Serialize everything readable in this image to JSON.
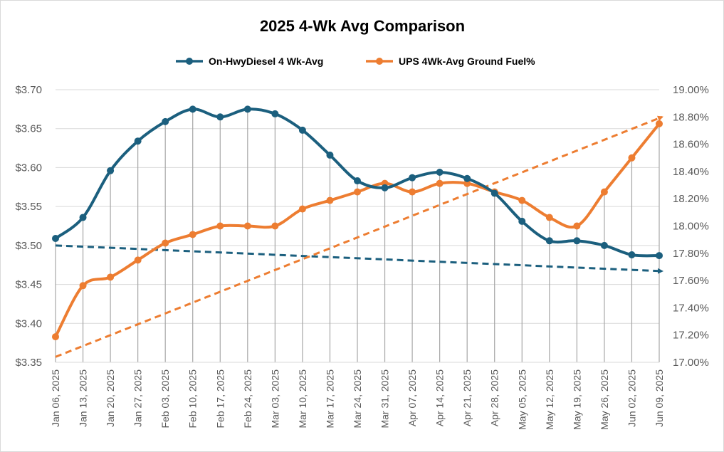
{
  "chart_data": {
    "type": "line",
    "title": "2025 4-Wk Avg Comparison",
    "categories": [
      "Jan 06, 2025",
      "Jan 13, 2025",
      "Jan 20, 2025",
      "Jan 27, 2025",
      "Feb 03, 2025",
      "Feb 10, 2025",
      "Feb 17, 2025",
      "Feb 24, 2025",
      "Mar 03, 2025",
      "Mar 10, 2025",
      "Mar 17, 2025",
      "Mar 24, 2025",
      "Mar 31, 2025",
      "Apr 07, 2025",
      "Apr 14, 2025",
      "Apr 21, 2025",
      "Apr 28, 2025",
      "May 05, 2025",
      "May 12, 2025",
      "May 19, 2025",
      "May 26, 2025",
      "Jun 02, 2025",
      "Jun 09, 2025"
    ],
    "series": [
      {
        "name": "On-HwyDiesel 4 Wk-Avg",
        "axis": "left",
        "color": "#1b5f7e",
        "values": [
          3.509,
          3.536,
          3.596,
          3.634,
          3.659,
          3.675,
          3.665,
          3.675,
          3.669,
          3.648,
          3.616,
          3.583,
          3.574,
          3.587,
          3.594,
          3.586,
          3.567,
          3.531,
          3.506,
          3.506,
          3.5,
          3.488,
          3.487
        ],
        "trendline": {
          "start": 3.5,
          "end": 3.467,
          "style": "dashed"
        }
      },
      {
        "name": "UPS 4Wk-Avg Ground Fuel%",
        "axis": "right",
        "color": "#ed7d31",
        "values": [
          17.1875,
          17.5625,
          17.625,
          17.75,
          17.875,
          17.9375,
          18.0,
          18.0,
          18.0,
          18.125,
          18.1875,
          18.25,
          18.3125,
          18.25,
          18.3125,
          18.3125,
          18.25,
          18.1875,
          18.0625,
          18.0,
          18.25,
          18.5,
          18.75
        ],
        "trendline": {
          "start": 17.04,
          "end": 18.8,
          "style": "dashed"
        }
      }
    ],
    "y_left": {
      "min": 3.35,
      "max": 3.7,
      "ticks": [
        "$3.35",
        "$3.40",
        "$3.45",
        "$3.50",
        "$3.55",
        "$3.60",
        "$3.65",
        "$3.70"
      ]
    },
    "y_right": {
      "min": 17.0,
      "max": 19.0,
      "ticks": [
        "17.00%",
        "17.20%",
        "17.40%",
        "17.60%",
        "17.80%",
        "18.00%",
        "18.20%",
        "18.40%",
        "18.60%",
        "18.80%",
        "19.00%"
      ]
    },
    "grid": true,
    "drop_lines": true,
    "legend_position": "top"
  }
}
